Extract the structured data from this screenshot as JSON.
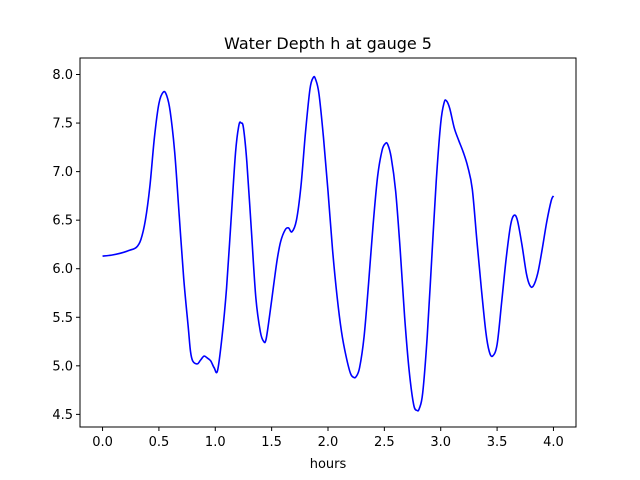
{
  "chart_data": {
    "type": "line",
    "title": "Water Depth h at gauge 5",
    "xlabel": "hours",
    "ylabel": "",
    "xlim": [
      -0.2,
      4.2
    ],
    "ylim": [
      4.37,
      8.17
    ],
    "xticks": [
      0.0,
      0.5,
      1.0,
      1.5,
      2.0,
      2.5,
      3.0,
      3.5,
      4.0
    ],
    "xtick_labels": [
      "0.0",
      "0.5",
      "1.0",
      "1.5",
      "2.0",
      "2.5",
      "3.0",
      "3.5",
      "4.0"
    ],
    "yticks": [
      4.5,
      5.0,
      5.5,
      6.0,
      6.5,
      7.0,
      7.5,
      8.0
    ],
    "ytick_labels": [
      "4.5",
      "5.0",
      "5.5",
      "6.0",
      "6.5",
      "7.0",
      "7.5",
      "8.0"
    ],
    "grid": false,
    "series": [
      {
        "color": "#0000ff",
        "x": [
          0.0,
          0.08,
          0.16,
          0.24,
          0.3,
          0.34,
          0.38,
          0.42,
          0.46,
          0.5,
          0.54,
          0.57,
          0.6,
          0.64,
          0.68,
          0.72,
          0.76,
          0.78,
          0.8,
          0.84,
          0.87,
          0.9,
          0.93,
          0.96,
          0.99,
          1.02,
          1.06,
          1.1,
          1.14,
          1.18,
          1.21,
          1.23,
          1.25,
          1.28,
          1.32,
          1.36,
          1.4,
          1.43,
          1.45,
          1.48,
          1.52,
          1.55,
          1.58,
          1.62,
          1.65,
          1.68,
          1.72,
          1.76,
          1.8,
          1.84,
          1.87,
          1.89,
          1.92,
          1.96,
          2.0,
          2.04,
          2.08,
          2.12,
          2.16,
          2.2,
          2.23,
          2.25,
          2.28,
          2.32,
          2.36,
          2.4,
          2.44,
          2.48,
          2.51,
          2.53,
          2.56,
          2.6,
          2.64,
          2.68,
          2.72,
          2.76,
          2.79,
          2.81,
          2.84,
          2.88,
          2.92,
          2.96,
          3.0,
          3.03,
          3.05,
          3.08,
          3.12,
          3.16,
          3.2,
          3.24,
          3.28,
          3.32,
          3.36,
          3.4,
          3.43,
          3.46,
          3.5,
          3.54,
          3.58,
          3.62,
          3.65,
          3.68,
          3.72,
          3.76,
          3.79,
          3.82,
          3.86,
          3.9,
          3.94,
          3.98,
          4.0
        ],
        "y": [
          6.13,
          6.14,
          6.16,
          6.19,
          6.22,
          6.3,
          6.5,
          6.85,
          7.35,
          7.7,
          7.82,
          7.78,
          7.62,
          7.2,
          6.55,
          5.9,
          5.4,
          5.15,
          5.05,
          5.02,
          5.06,
          5.1,
          5.08,
          5.05,
          4.98,
          4.95,
          5.3,
          5.8,
          6.5,
          7.2,
          7.48,
          7.5,
          7.45,
          7.1,
          6.4,
          5.7,
          5.35,
          5.25,
          5.27,
          5.5,
          5.85,
          6.1,
          6.28,
          6.4,
          6.42,
          6.38,
          6.5,
          6.85,
          7.4,
          7.85,
          7.97,
          7.95,
          7.8,
          7.35,
          6.8,
          6.2,
          5.72,
          5.35,
          5.1,
          4.92,
          4.88,
          4.89,
          4.98,
          5.3,
          5.85,
          6.45,
          6.95,
          7.22,
          7.29,
          7.28,
          7.15,
          6.8,
          6.2,
          5.5,
          4.95,
          4.6,
          4.54,
          4.56,
          4.72,
          5.3,
          6.1,
          6.9,
          7.5,
          7.71,
          7.73,
          7.65,
          7.45,
          7.32,
          7.2,
          7.05,
          6.82,
          6.3,
          5.8,
          5.35,
          5.15,
          5.1,
          5.22,
          5.65,
          6.1,
          6.45,
          6.55,
          6.5,
          6.25,
          5.95,
          5.83,
          5.82,
          5.95,
          6.2,
          6.48,
          6.7,
          6.75
        ]
      }
    ]
  }
}
